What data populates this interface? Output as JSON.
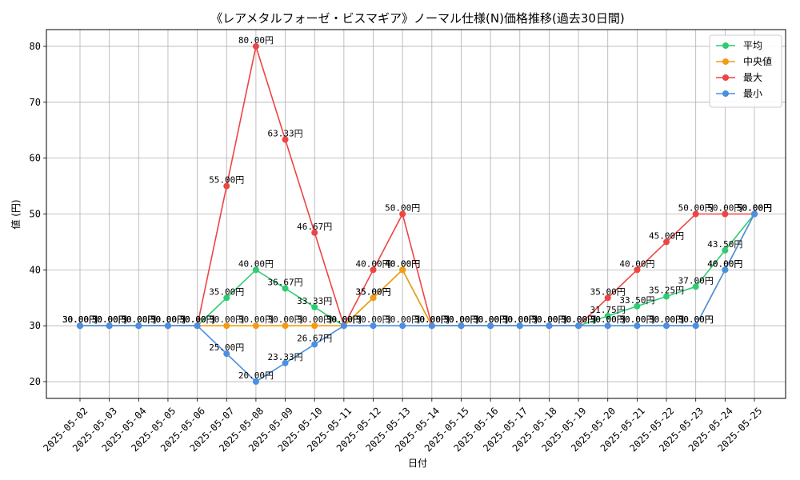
{
  "chart_data": {
    "type": "line",
    "title": "《レアメタルフォーゼ・ビスマギア》ノーマル仕様(N)価格推移(過去30日間)",
    "xlabel": "日付",
    "ylabel": "値 (円)",
    "ylim": [
      17,
      83
    ],
    "yticks": [
      20,
      30,
      40,
      50,
      60,
      70,
      80
    ],
    "grid": true,
    "legend_position": "top-right",
    "label_suffix": "円",
    "categories": [
      "2025-05-02",
      "2025-05-03",
      "2025-05-04",
      "2025-05-05",
      "2025-05-06",
      "2025-05-07",
      "2025-05-08",
      "2025-05-09",
      "2025-05-10",
      "2025-05-11",
      "2025-05-12",
      "2025-05-13",
      "2025-05-14",
      "2025-05-15",
      "2025-05-16",
      "2025-05-17",
      "2025-05-18",
      "2025-05-19",
      "2025-05-20",
      "2025-05-21",
      "2025-05-22",
      "2025-05-23",
      "2025-05-24",
      "2025-05-25"
    ],
    "series": [
      {
        "name": "平均",
        "color": "#2ecc71",
        "values": [
          30,
          30,
          30,
          30,
          30,
          35,
          40,
          36.67,
          33.33,
          30,
          35,
          40,
          30,
          30,
          30,
          30,
          30,
          30,
          31.75,
          33.5,
          35.25,
          37,
          43.5,
          50
        ]
      },
      {
        "name": "中央値",
        "color": "#f39c12",
        "values": [
          30,
          30,
          30,
          30,
          30,
          30,
          30,
          30,
          30,
          30,
          35,
          40,
          30,
          30,
          30,
          30,
          30,
          30,
          30,
          30,
          30,
          30,
          40,
          50
        ]
      },
      {
        "name": "最大",
        "color": "#ef4444",
        "values": [
          30,
          30,
          30,
          30,
          30,
          55,
          80,
          63.33,
          46.67,
          30,
          40,
          50,
          30,
          30,
          30,
          30,
          30,
          30,
          35,
          40,
          45,
          50,
          50,
          50
        ]
      },
      {
        "name": "最小",
        "color": "#4a90e2",
        "values": [
          30,
          30,
          30,
          30,
          30,
          25,
          20,
          23.33,
          26.67,
          30,
          30,
          30,
          30,
          30,
          30,
          30,
          30,
          30,
          30,
          30,
          30,
          30,
          40,
          50
        ]
      }
    ]
  }
}
